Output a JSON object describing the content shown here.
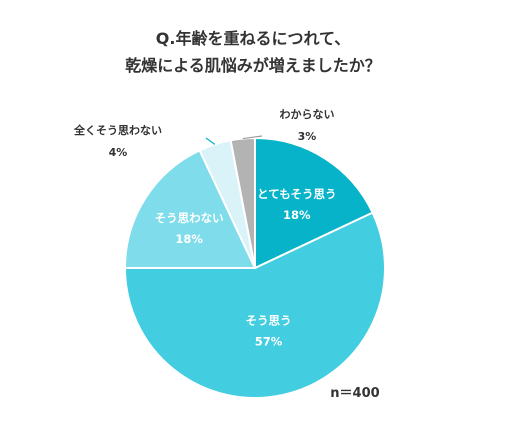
{
  "chart_data": {
    "type": "pie",
    "title": [
      "Q.年齢を重ねるにつれて、",
      "乾燥による肌悩みが増えましたか？"
    ],
    "slices": [
      {
        "label": "とてもそう思う",
        "value": 18,
        "value_text": "18%",
        "color": "#06b3c9"
      },
      {
        "label": "そう思う",
        "value": 57,
        "value_text": "57%",
        "color": "#42cde0"
      },
      {
        "label": "そう思わない",
        "value": 18,
        "value_text": "18%",
        "color": "#7fdcea"
      },
      {
        "label": "全くそう思わない",
        "value": 4,
        "value_text": "4%",
        "color": "#daf3f8"
      },
      {
        "label": "わからない",
        "value": 3,
        "value_text": "3%",
        "color": "#b3b3b3"
      }
    ],
    "sample_note": "n＝400"
  }
}
